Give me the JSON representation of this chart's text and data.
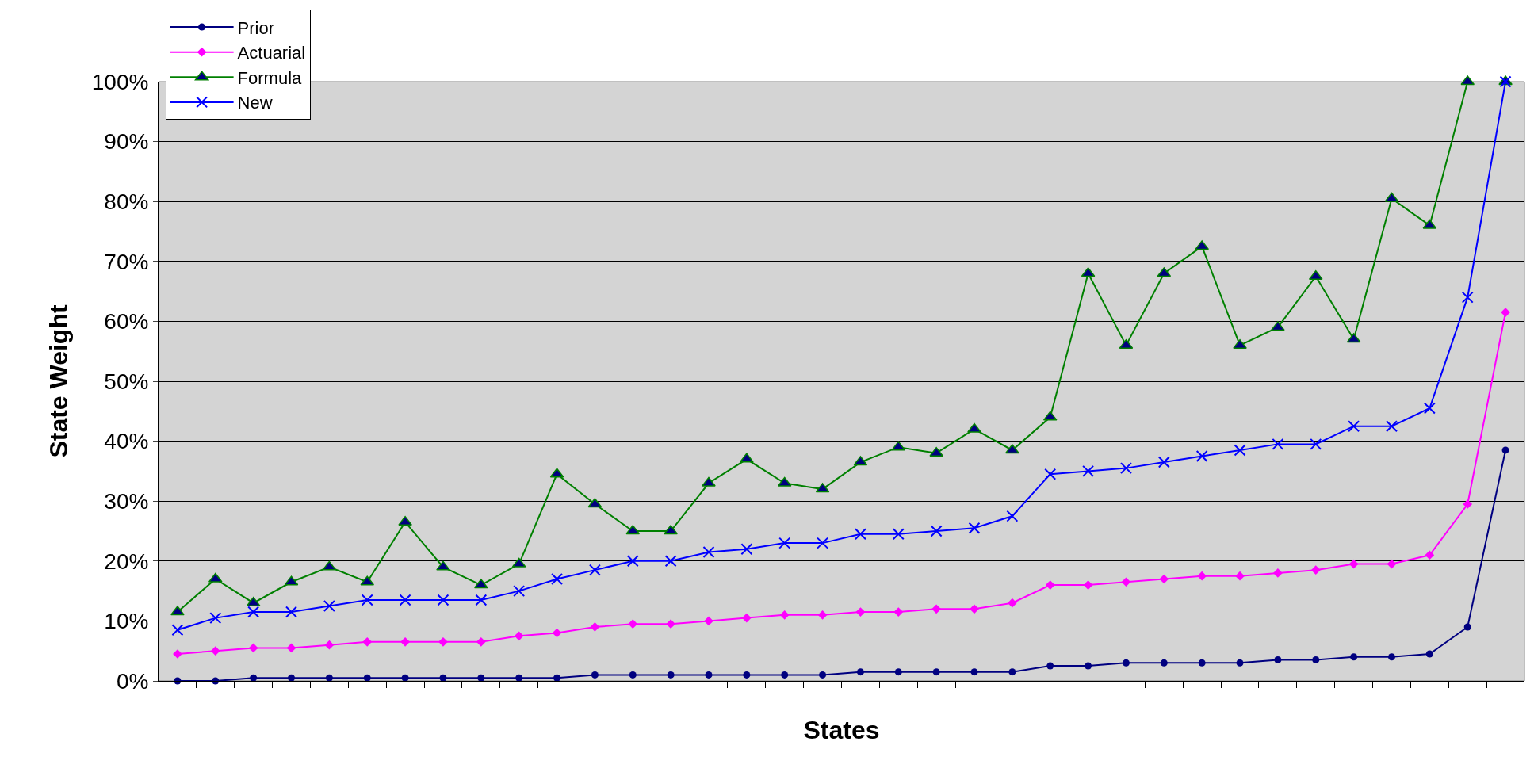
{
  "chart_data": {
    "type": "line",
    "xlabel": "States",
    "ylabel": "State Weight",
    "categories": [
      null,
      null,
      null,
      null,
      null,
      null,
      null,
      null,
      null,
      null,
      null,
      null,
      null,
      null,
      null,
      null,
      null,
      null,
      null,
      null,
      null,
      null,
      null,
      null,
      null,
      null,
      null,
      null,
      null,
      null,
      null,
      null,
      null,
      null,
      null,
      null
    ],
    "series": [
      {
        "name": "Prior",
        "color": "#000080",
        "marker": "circle",
        "values": [
          0,
          0,
          0.5,
          0.5,
          0.5,
          0.5,
          0.5,
          0.5,
          0.5,
          0.5,
          0.5,
          1,
          1,
          1,
          1,
          1,
          1,
          1,
          1.5,
          1.5,
          1.5,
          1.5,
          1.5,
          2.5,
          2.5,
          3,
          3,
          3,
          3,
          3.5,
          3.5,
          4,
          4,
          4.5,
          9,
          38.5
        ]
      },
      {
        "name": "Actuarial",
        "color": "#ff00ff",
        "marker": "diamond",
        "values": [
          4.5,
          5,
          5.5,
          5.5,
          6,
          6.5,
          6.5,
          6.5,
          6.5,
          7.5,
          8,
          9,
          9.5,
          9.5,
          10,
          10.5,
          11,
          11,
          11.5,
          11.5,
          12,
          12,
          13,
          16,
          16,
          16.5,
          17,
          17.5,
          17.5,
          18,
          18.5,
          19.5,
          19.5,
          21,
          29.5,
          61.5
        ]
      },
      {
        "name": "Formula",
        "color": "#008000",
        "marker": "triangle",
        "values": [
          11.5,
          17,
          13,
          16.5,
          19,
          16.5,
          26.5,
          19,
          16,
          19.5,
          34.5,
          29.5,
          25,
          25,
          33,
          37,
          33,
          32,
          36.5,
          39,
          38,
          42,
          38.5,
          44,
          68,
          56,
          68,
          72.5,
          56,
          59,
          67.5,
          57,
          80.5,
          76,
          100,
          100
        ]
      },
      {
        "name": "New",
        "color": "#0000ff",
        "marker": "cross",
        "values": [
          8.5,
          10.5,
          11.5,
          11.5,
          12.5,
          13.5,
          13.5,
          13.5,
          13.5,
          15,
          17,
          18.5,
          20,
          20,
          21.5,
          22,
          23,
          23,
          24.5,
          24.5,
          25,
          25.5,
          27.5,
          34.5,
          35,
          35.5,
          36.5,
          37.5,
          38.5,
          39.5,
          39.5,
          42.5,
          42.5,
          45.5,
          64,
          100
        ]
      }
    ],
    "ylim": [
      0,
      100
    ],
    "yticks": [
      {
        "value": 0,
        "label": "0%"
      },
      {
        "value": 10,
        "label": "10%"
      },
      {
        "value": 20,
        "label": "20%"
      },
      {
        "value": 30,
        "label": "30%"
      },
      {
        "value": 40,
        "label": "40%"
      },
      {
        "value": 50,
        "label": "50%"
      },
      {
        "value": 60,
        "label": "60%"
      },
      {
        "value": 70,
        "label": "70%"
      },
      {
        "value": 80,
        "label": "80%"
      },
      {
        "value": 90,
        "label": "90%"
      },
      {
        "value": 100,
        "label": "100%"
      }
    ],
    "grid": "y",
    "legend": "top left"
  }
}
